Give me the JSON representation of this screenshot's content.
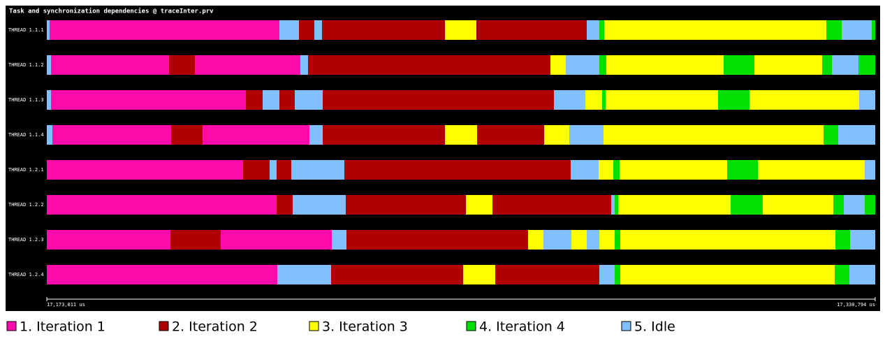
{
  "chart_data": {
    "type": "timeline",
    "title": "Task and synchronization dependencies @ traceInter.prv",
    "legend": [
      {
        "name": "1. Iteration 1",
        "color": "#ff0aab"
      },
      {
        "name": "2. Iteration 2",
        "color": "#b00000"
      },
      {
        "name": "3. Iteration 3",
        "color": "#ffff00"
      },
      {
        "name": "4. Iteration 4",
        "color": "#00e000"
      },
      {
        "name": "5. Idle",
        "color": "#80c0ff"
      }
    ],
    "xlim": [
      17173011,
      17330794
    ],
    "xticks": [
      {
        "value": 17173011,
        "label": "17,173,011 us"
      },
      {
        "value": 17330794,
        "label": "17,330,794 us"
      }
    ],
    "series": [
      {
        "name": "THREAD 1.1.1",
        "states": [
          4,
          0,
          4,
          1,
          4,
          1,
          2,
          1,
          4,
          3,
          2,
          3,
          4,
          3
        ],
        "bounds": [
          17173011,
          17173543,
          17217313,
          17221038,
          17223965,
          17225429,
          17248844,
          17254831,
          17275851,
          17278246,
          17279177,
          17321484,
          17324411,
          17330131,
          17330794
        ]
      },
      {
        "name": "THREAD 1.1.2",
        "states": [
          4,
          0,
          1,
          0,
          4,
          1,
          2,
          4,
          3,
          2,
          3,
          2,
          3,
          4,
          3
        ],
        "bounds": [
          17173011,
          17173809,
          17196293,
          17201215,
          17221305,
          17222768,
          17268933,
          17271860,
          17278246,
          17279576,
          17301927,
          17307781,
          17320685,
          17322548,
          17327603,
          17330794
        ]
      },
      {
        "name": "THREAD 1.1.3",
        "states": [
          4,
          0,
          1,
          4,
          1,
          4,
          1,
          4,
          2,
          3,
          2,
          3,
          2,
          4
        ],
        "bounds": [
          17173011,
          17173809,
          17210927,
          17214120,
          17217313,
          17220240,
          17225562,
          17269598,
          17275585,
          17278778,
          17279443,
          17300862,
          17306849,
          17327737,
          17330794
        ]
      },
      {
        "name": "THREAD 1.1.4",
        "states": [
          4,
          0,
          1,
          0,
          4,
          1,
          2,
          1,
          2,
          4,
          2,
          3,
          4
        ],
        "bounds": [
          17173011,
          17174075,
          17196692,
          17202679,
          17223034,
          17225562,
          17248844,
          17254964,
          17267735,
          17272525,
          17279044,
          17320951,
          17323745,
          17330794
        ]
      },
      {
        "name": "THREAD 1.2.1",
        "states": [
          0,
          1,
          4,
          1,
          4,
          1,
          4,
          2,
          3,
          2,
          3,
          2,
          4
        ],
        "bounds": [
          17173011,
          17210395,
          17215451,
          17216781,
          17219575,
          17229686,
          17272791,
          17278113,
          17280906,
          17282104,
          17302592,
          17308446,
          17328801,
          17330794
        ]
      },
      {
        "name": "THREAD 1.2.2",
        "states": [
          0,
          1,
          4,
          1,
          2,
          1,
          4,
          3,
          2,
          3,
          2,
          3,
          4,
          3
        ],
        "bounds": [
          17173011,
          17216781,
          17219841,
          17229952,
          17252835,
          17257891,
          17280507,
          17281173,
          17281838,
          17303257,
          17309377,
          17322814,
          17324810,
          17328801,
          17330794
        ]
      },
      {
        "name": "THREAD 1.2.3",
        "states": [
          0,
          1,
          0,
          4,
          1,
          2,
          4,
          2,
          4,
          2,
          3,
          2,
          3,
          4
        ],
        "bounds": [
          17173011,
          17196559,
          17206138,
          17227291,
          17230085,
          17264676,
          17267602,
          17272924,
          17275851,
          17278246,
          17281173,
          17282237,
          17323213,
          17326007,
          17330794
        ]
      },
      {
        "name": "THREAD 1.2.4",
        "states": [
          0,
          4,
          1,
          2,
          1,
          4,
          3,
          2,
          3,
          4
        ],
        "bounds": [
          17173011,
          17216914,
          17227158,
          17252303,
          17258423,
          17278246,
          17281173,
          17282237,
          17323080,
          17325874,
          17330794
        ]
      }
    ]
  }
}
